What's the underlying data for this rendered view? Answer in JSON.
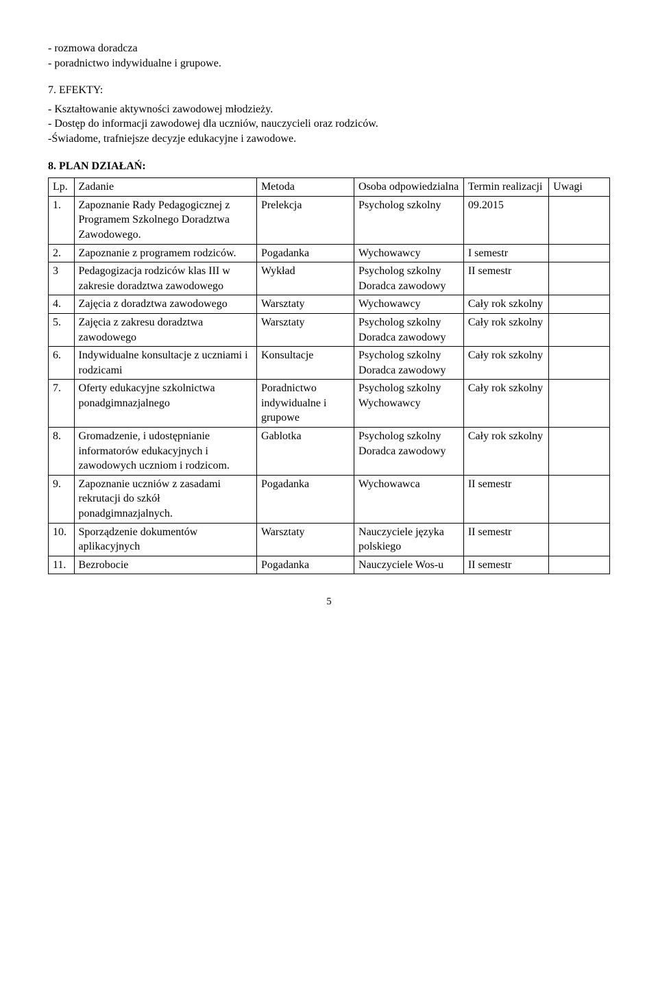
{
  "intro_lines": [
    "- rozmowa doradcza",
    "- poradnictwo indywidualne i grupowe."
  ],
  "section7_head": "7. EFEKTY:",
  "section7_lines": [
    "- Kształtowanie aktywności zawodowej młodzieży.",
    "- Dostęp do informacji zawodowej dla uczniów, nauczycieli oraz rodziców.",
    "-Świadome, trafniejsze decyzje edukacyjne i zawodowe."
  ],
  "section8_head": "8. PLAN DZIAŁAŃ:",
  "table": {
    "columns": [
      "Lp.",
      "Zadanie",
      "Metoda",
      "Osoba odpowiedzialna",
      "Termin realizacji",
      "Uwagi"
    ],
    "rows": [
      [
        "1.",
        "Zapoznanie Rady Pedagogicznej z Programem Szkolnego Doradztwa Zawodowego.",
        "Prelekcja",
        "Psycholog szkolny",
        "09.2015",
        ""
      ],
      [
        "2.",
        "Zapoznanie z programem rodziców.",
        "Pogadanka",
        "Wychowawcy",
        "I semestr",
        ""
      ],
      [
        "3",
        "Pedagogizacja rodziców klas III w zakresie doradztwa zawodowego",
        "Wykład",
        "Psycholog szkolny Doradca zawodowy",
        "II semestr",
        ""
      ],
      [
        "4.",
        "Zajęcia z doradztwa zawodowego",
        "Warsztaty",
        "Wychowawcy",
        "Cały rok szkolny",
        ""
      ],
      [
        "5.",
        "Zajęcia z zakresu doradztwa zawodowego",
        "Warsztaty",
        "Psycholog szkolny Doradca zawodowy",
        "Cały rok szkolny",
        ""
      ],
      [
        "6.",
        "Indywidualne konsultacje z uczniami i rodzicami",
        "Konsultacje",
        "Psycholog szkolny Doradca zawodowy",
        "Cały rok szkolny",
        ""
      ],
      [
        "7.",
        "Oferty edukacyjne szkolnictwa ponadgimnazjalnego",
        "Poradnictwo indywidualne i grupowe",
        "Psycholog szkolny Wychowawcy",
        "Cały rok szkolny",
        ""
      ],
      [
        "8.",
        "Gromadzenie, i udostępnianie informatorów edukacyjnych i zawodowych uczniom i rodzicom.",
        "Gablotka",
        "Psycholog szkolny Doradca zawodowy",
        "Cały rok szkolny",
        ""
      ],
      [
        "9.",
        "Zapoznanie uczniów z zasadami rekrutacji do szkół ponadgimnazjalnych.",
        "Pogadanka",
        "Wychowawca",
        "II semestr",
        ""
      ],
      [
        "10.",
        "Sporządzenie dokumentów aplikacyjnych",
        "Warsztaty",
        "Nauczyciele języka polskiego",
        "II semestr",
        ""
      ],
      [
        "11.",
        "Bezrobocie",
        "Pogadanka",
        "Nauczyciele Wos-u",
        "II semestr",
        ""
      ]
    ],
    "col_classes": [
      "col-lp",
      "col-zad",
      "col-met",
      "col-os",
      "col-ter",
      "col-uw"
    ]
  },
  "page_number": "5"
}
